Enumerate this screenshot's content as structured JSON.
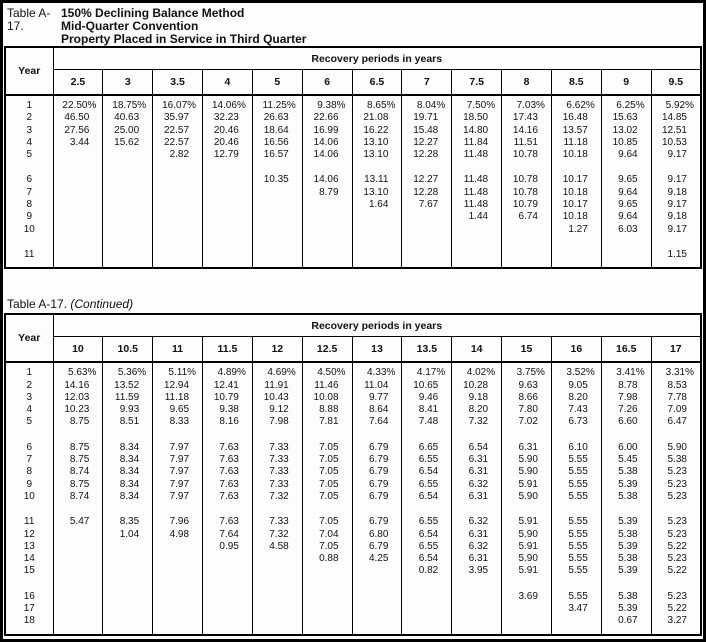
{
  "header": {
    "label": "Table A-17.",
    "lines": [
      "150% Declining Balance Method",
      "Mid-Quarter Convention",
      "Property Placed in Service in Third Quarter"
    ]
  },
  "continued": {
    "label": "Table A-17.",
    "suffix": "(Continued)"
  },
  "table1": {
    "year_header": "Year",
    "span_header": "Recovery periods in years",
    "periods": [
      "2.5",
      "3",
      "3.5",
      "4",
      "5",
      "6",
      "6.5",
      "7",
      "7.5",
      "8",
      "8.5",
      "9",
      "9.5"
    ],
    "groups": [
      [
        {
          "year": "1",
          "values": [
            "22.50%",
            "18.75%",
            "16.07%",
            "14.06%",
            "11.25%",
            "9.38%",
            "8.65%",
            "8.04%",
            "7.50%",
            "7.03%",
            "6.62%",
            "6.25%",
            "5.92%"
          ]
        },
        {
          "year": "2",
          "values": [
            "46.50",
            "40.63",
            "35.97",
            "32.23",
            "26.63",
            "22.66",
            "21.08",
            "19.71",
            "18.50",
            "17.43",
            "16.48",
            "15.63",
            "14.85"
          ]
        },
        {
          "year": "3",
          "values": [
            "27.56",
            "25.00",
            "22.57",
            "20.46",
            "18.64",
            "16.99",
            "16.22",
            "15.48",
            "14.80",
            "14.16",
            "13.57",
            "13.02",
            "12.51"
          ]
        },
        {
          "year": "4",
          "values": [
            "3.44",
            "15.62",
            "22.57",
            "20.46",
            "16.56",
            "14.06",
            "13.10",
            "12.27",
            "11.84",
            "11.51",
            "11.18",
            "10.85",
            "10.53"
          ]
        },
        {
          "year": "5",
          "values": [
            "",
            "",
            "2.82",
            "12.79",
            "16.57",
            "14.06",
            "13.10",
            "12.28",
            "11.48",
            "10.78",
            "10.18",
            "9.64",
            "9.17"
          ]
        }
      ],
      [
        {
          "year": "6",
          "values": [
            "",
            "",
            "",
            "",
            "10.35",
            "14.06",
            "13.11",
            "12.27",
            "11.48",
            "10.78",
            "10.17",
            "9.65",
            "9.17"
          ]
        },
        {
          "year": "7",
          "values": [
            "",
            "",
            "",
            "",
            "",
            "8.79",
            "13.10",
            "12.28",
            "11.48",
            "10.78",
            "10.18",
            "9.64",
            "9.18"
          ]
        },
        {
          "year": "8",
          "values": [
            "",
            "",
            "",
            "",
            "",
            "",
            "1.64",
            "7.67",
            "11.48",
            "10.79",
            "10.17",
            "9.65",
            "9.17"
          ]
        },
        {
          "year": "9",
          "values": [
            "",
            "",
            "",
            "",
            "",
            "",
            "",
            "",
            "1.44",
            "6.74",
            "10.18",
            "9.64",
            "9.18"
          ]
        },
        {
          "year": "10",
          "values": [
            "",
            "",
            "",
            "",
            "",
            "",
            "",
            "",
            "",
            "",
            "1.27",
            "6.03",
            "9.17"
          ]
        }
      ],
      [
        {
          "year": "11",
          "values": [
            "",
            "",
            "",
            "",
            "",
            "",
            "",
            "",
            "",
            "",
            "",
            "",
            "1.15"
          ]
        }
      ]
    ]
  },
  "table2": {
    "year_header": "Year",
    "span_header": "Recovery periods in years",
    "periods": [
      "10",
      "10.5",
      "11",
      "11.5",
      "12",
      "12.5",
      "13",
      "13.5",
      "14",
      "15",
      "16",
      "16.5",
      "17"
    ],
    "groups": [
      [
        {
          "year": "1",
          "values": [
            "5.63%",
            "5.36%",
            "5.11%",
            "4.89%",
            "4.69%",
            "4.50%",
            "4.33%",
            "4.17%",
            "4.02%",
            "3.75%",
            "3.52%",
            "3.41%",
            "3.31%"
          ]
        },
        {
          "year": "2",
          "values": [
            "14.16",
            "13.52",
            "12.94",
            "12.41",
            "11.91",
            "11.46",
            "11.04",
            "10.65",
            "10.28",
            "9.63",
            "9.05",
            "8.78",
            "8.53"
          ]
        },
        {
          "year": "3",
          "values": [
            "12.03",
            "11.59",
            "11.18",
            "10.79",
            "10.43",
            "10.08",
            "9.77",
            "9.46",
            "9.18",
            "8.66",
            "8.20",
            "7.98",
            "7.78"
          ]
        },
        {
          "year": "4",
          "values": [
            "10.23",
            "9.93",
            "9.65",
            "9.38",
            "9.12",
            "8.88",
            "8.64",
            "8.41",
            "8.20",
            "7.80",
            "7.43",
            "7.26",
            "7.09"
          ]
        },
        {
          "year": "5",
          "values": [
            "8.75",
            "8.51",
            "8.33",
            "8.16",
            "7.98",
            "7.81",
            "7.64",
            "7.48",
            "7.32",
            "7.02",
            "6.73",
            "6.60",
            "6.47"
          ]
        }
      ],
      [
        {
          "year": "6",
          "values": [
            "8.75",
            "8.34",
            "7.97",
            "7.63",
            "7.33",
            "7.05",
            "6.79",
            "6.65",
            "6.54",
            "6.31",
            "6.10",
            "6.00",
            "5.90"
          ]
        },
        {
          "year": "7",
          "values": [
            "8.75",
            "8.34",
            "7.97",
            "7.63",
            "7.33",
            "7.05",
            "6.79",
            "6.55",
            "6.31",
            "5.90",
            "5.55",
            "5.45",
            "5.38"
          ]
        },
        {
          "year": "8",
          "values": [
            "8.74",
            "8.34",
            "7.97",
            "7.63",
            "7.33",
            "7.05",
            "6.79",
            "6.54",
            "6.31",
            "5.90",
            "5.55",
            "5.38",
            "5.23"
          ]
        },
        {
          "year": "9",
          "values": [
            "8.75",
            "8.34",
            "7.97",
            "7.63",
            "7.33",
            "7.05",
            "6.79",
            "6.55",
            "6.32",
            "5.91",
            "5.55",
            "5.39",
            "5.23"
          ]
        },
        {
          "year": "10",
          "values": [
            "8.74",
            "8.34",
            "7.97",
            "7.63",
            "7.32",
            "7.05",
            "6.79",
            "6.54",
            "6.31",
            "5.90",
            "5.55",
            "5.38",
            "5.23"
          ]
        }
      ],
      [
        {
          "year": "11",
          "values": [
            "5.47",
            "8.35",
            "7.96",
            "7.63",
            "7.33",
            "7.05",
            "6.79",
            "6.55",
            "6.32",
            "5.91",
            "5.55",
            "5.39",
            "5.23"
          ]
        },
        {
          "year": "12",
          "values": [
            "",
            "1.04",
            "4.98",
            "7.64",
            "7.32",
            "7.04",
            "6.80",
            "6.54",
            "6.31",
            "5.90",
            "5.55",
            "5.38",
            "5.23"
          ]
        },
        {
          "year": "13",
          "values": [
            "",
            "",
            "",
            "0.95",
            "4.58",
            "7.05",
            "6.79",
            "6.55",
            "6.32",
            "5.91",
            "5.55",
            "5.39",
            "5.22"
          ]
        },
        {
          "year": "14",
          "values": [
            "",
            "",
            "",
            "",
            "",
            "0.88",
            "4.25",
            "6.54",
            "6.31",
            "5.90",
            "5.55",
            "5.38",
            "5.23"
          ]
        },
        {
          "year": "15",
          "values": [
            "",
            "",
            "",
            "",
            "",
            "",
            "",
            "0.82",
            "3.95",
            "5.91",
            "5.55",
            "5.39",
            "5.22"
          ]
        }
      ],
      [
        {
          "year": "16",
          "values": [
            "",
            "",
            "",
            "",
            "",
            "",
            "",
            "",
            "",
            "3.69",
            "5.55",
            "5.38",
            "5.23"
          ]
        },
        {
          "year": "17",
          "values": [
            "",
            "",
            "",
            "",
            "",
            "",
            "",
            "",
            "",
            "",
            "3.47",
            "5.39",
            "5.22"
          ]
        },
        {
          "year": "18",
          "values": [
            "",
            "",
            "",
            "",
            "",
            "",
            "",
            "",
            "",
            "",
            "",
            "0.67",
            "3.27"
          ]
        }
      ]
    ]
  }
}
